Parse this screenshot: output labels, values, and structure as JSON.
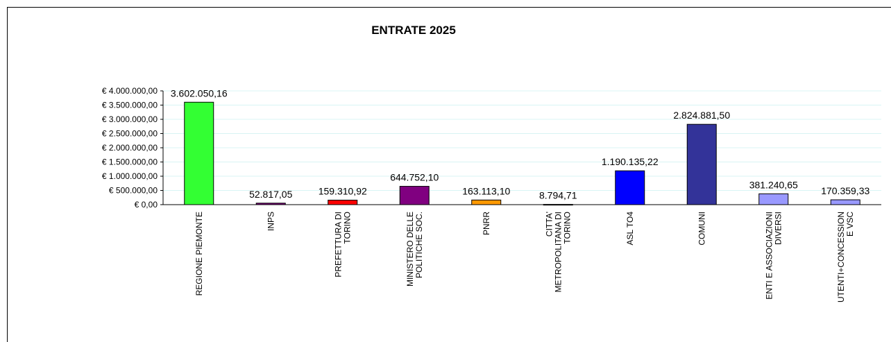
{
  "chart_data": {
    "type": "bar",
    "title": "ENTRATE 2025",
    "categories": [
      "REGIONE PIEMONTE",
      "INPS",
      "PREFETTURA DI\nTORINO",
      "MINISTERO DELLE\nPOLITICHE SOC.",
      "PNRR",
      "CITTA'\nMETROPOLITANA DI\nTORINO",
      "ASL TO4",
      "COMUNI",
      "ENTI E ASSOCIAZIONI\nDIVERSI",
      "UTENTI+CONCESSION\nE VSC"
    ],
    "values": [
      3602050.16,
      52817.05,
      159310.92,
      644752.1,
      163113.1,
      8794.71,
      1190135.22,
      2824881.5,
      381240.65,
      170359.33
    ],
    "value_labels": [
      "3.602.050,16",
      "52.817,05",
      "159.310,92",
      "644.752,10",
      "163.113,10",
      "8.794,71",
      "1.190.135,22",
      "2.824.881,50",
      "381.240,65",
      "170.359,33"
    ],
    "colors": [
      "#33ff33",
      "#800080",
      "#ff0000",
      "#800080",
      "#ff9900",
      "#333333",
      "#0000ff",
      "#333399",
      "#9999ff",
      "#9999ff"
    ],
    "ylim": [
      0,
      4000000
    ],
    "yticks": [
      {
        "value": 0,
        "label": "€ 0,00"
      },
      {
        "value": 500000,
        "label": "€ 500.000,00"
      },
      {
        "value": 1000000,
        "label": "€ 1.000.000,00"
      },
      {
        "value": 1500000,
        "label": "€ 1.500.000,00"
      },
      {
        "value": 2000000,
        "label": "€ 2.000.000,00"
      },
      {
        "value": 2500000,
        "label": "€ 2.500.000,00"
      },
      {
        "value": 3000000,
        "label": "€ 3.000.000,00"
      },
      {
        "value": 3500000,
        "label": "€ 3.500.000,00"
      },
      {
        "value": 4000000,
        "label": "€ 4.000.000,00"
      }
    ],
    "grid": true
  }
}
